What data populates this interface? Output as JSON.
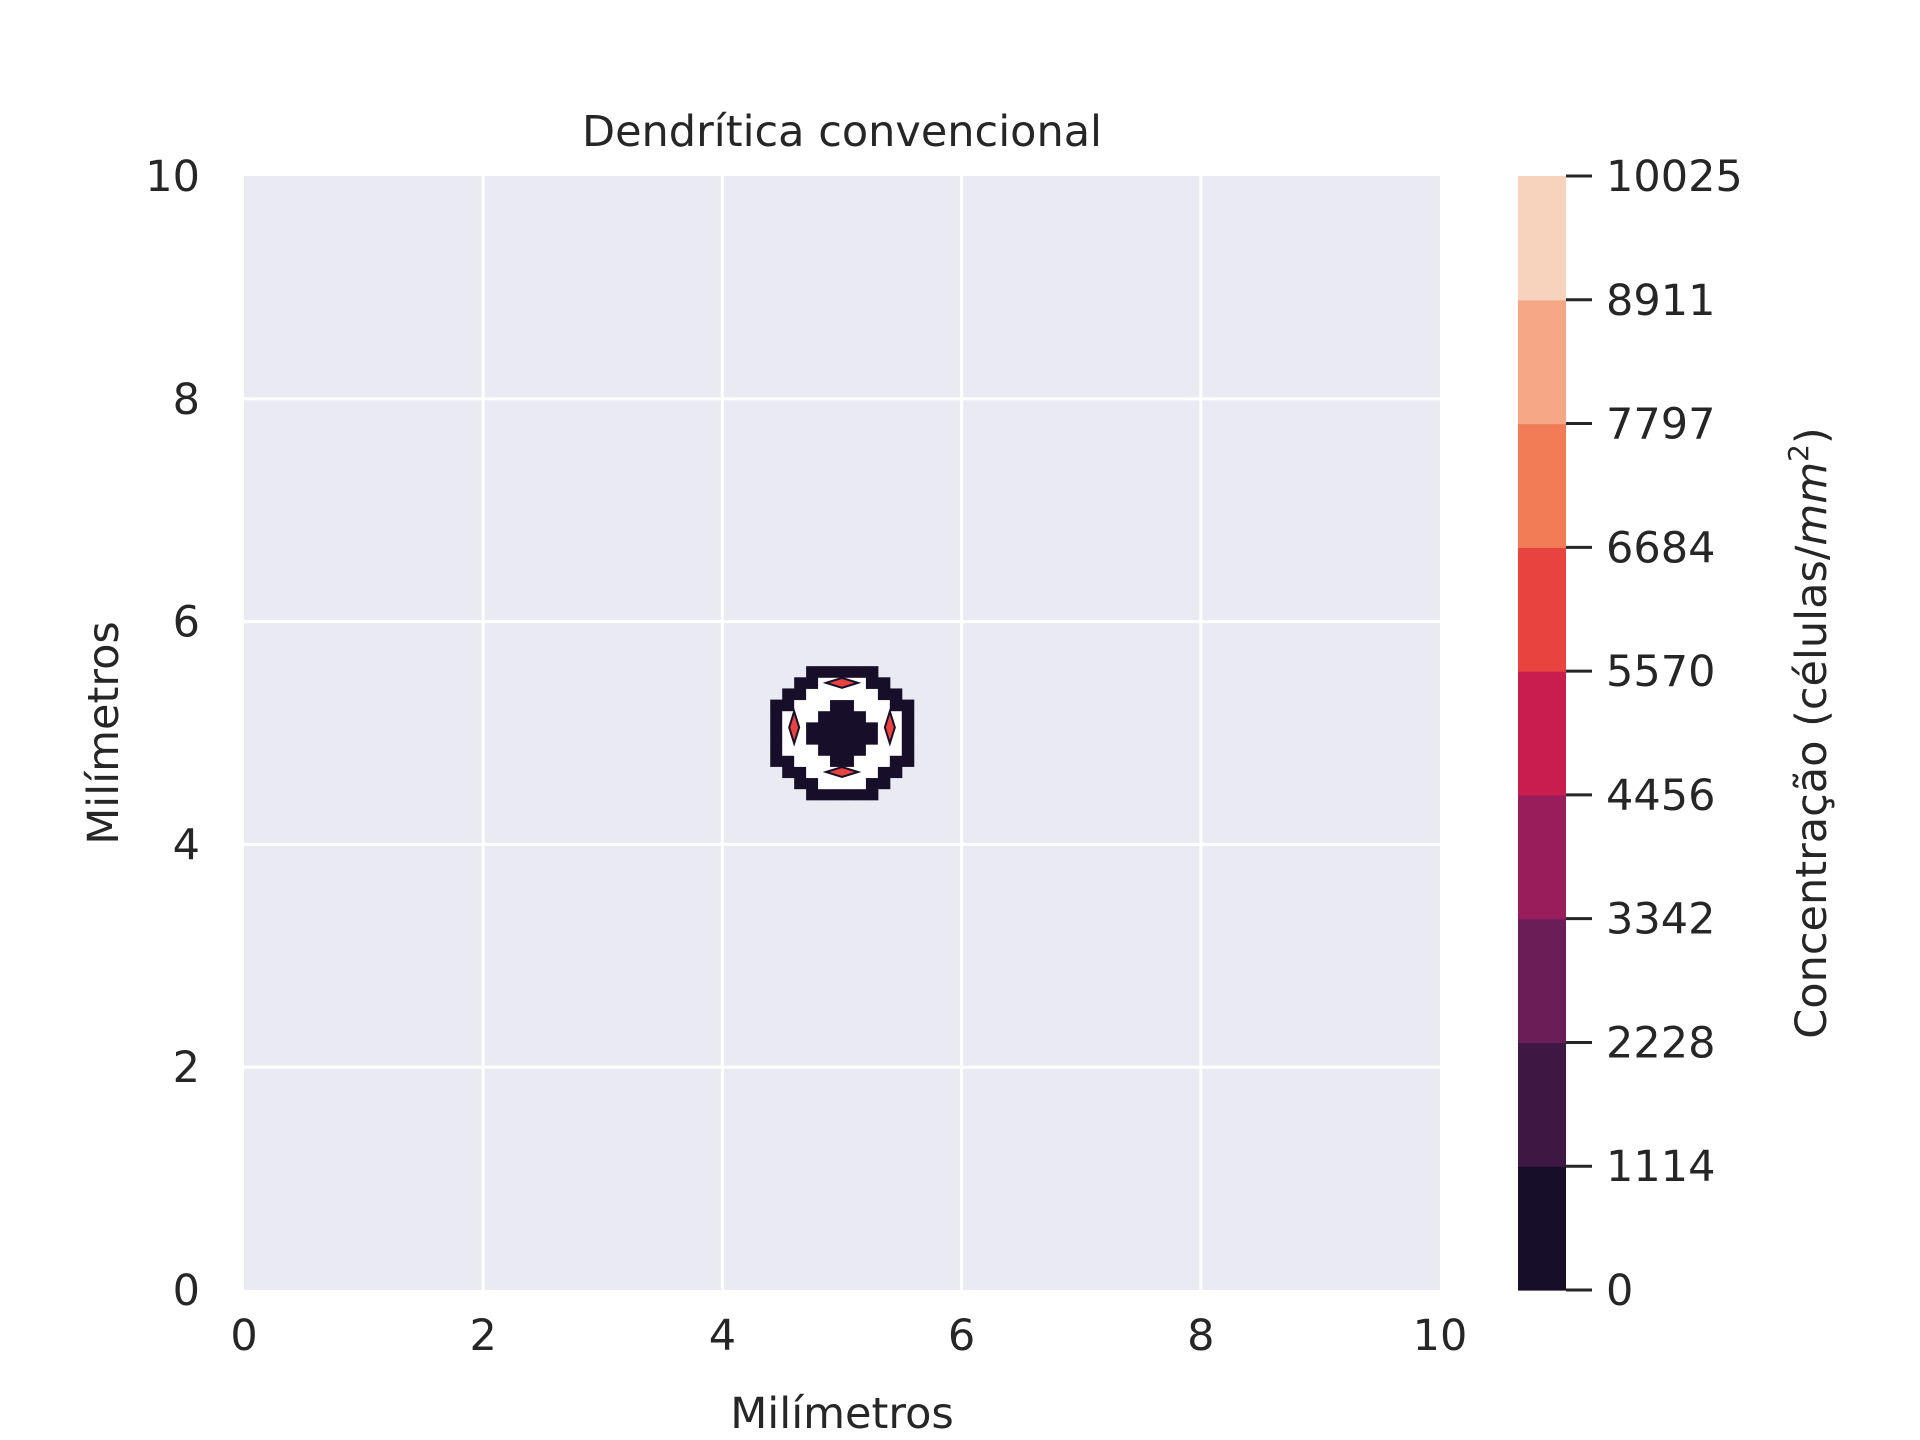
{
  "chart_data": {
    "type": "contour",
    "title": "Dendrítica convencional",
    "xlabel": "Milímetros",
    "ylabel": "Milímetros",
    "xlim": [
      0,
      10
    ],
    "ylim": [
      0,
      10
    ],
    "xticks": [
      "0",
      "2",
      "4",
      "6",
      "8",
      "10"
    ],
    "yticks": [
      "0",
      "2",
      "4",
      "6",
      "8",
      "10"
    ],
    "grid": true,
    "colorbar": {
      "label_prefix": "Concentração (células/",
      "label_unit": "mm",
      "label_exponent": "2",
      "label_suffix": ")",
      "levels": [
        "0",
        "1114",
        "2228",
        "3342",
        "4456",
        "5570",
        "6684",
        "7797",
        "8911",
        "10025"
      ],
      "colors": [
        "#170f2a",
        "#3e1842",
        "#6a1d56",
        "#981d5a",
        "#c91d4d",
        "#e8433f",
        "#f27c55",
        "#f5a684",
        "#f7d3bd"
      ]
    },
    "pattern": {
      "center": [
        5.0,
        5.0
      ],
      "blob_low_color": "#170f2a",
      "blob_empty_color": "#ffffff",
      "peak_color": "#e8433f",
      "peaks": [
        [
          5.0,
          5.45
        ],
        [
          5.0,
          4.65
        ],
        [
          4.6,
          5.05
        ],
        [
          5.4,
          5.05
        ]
      ]
    }
  }
}
